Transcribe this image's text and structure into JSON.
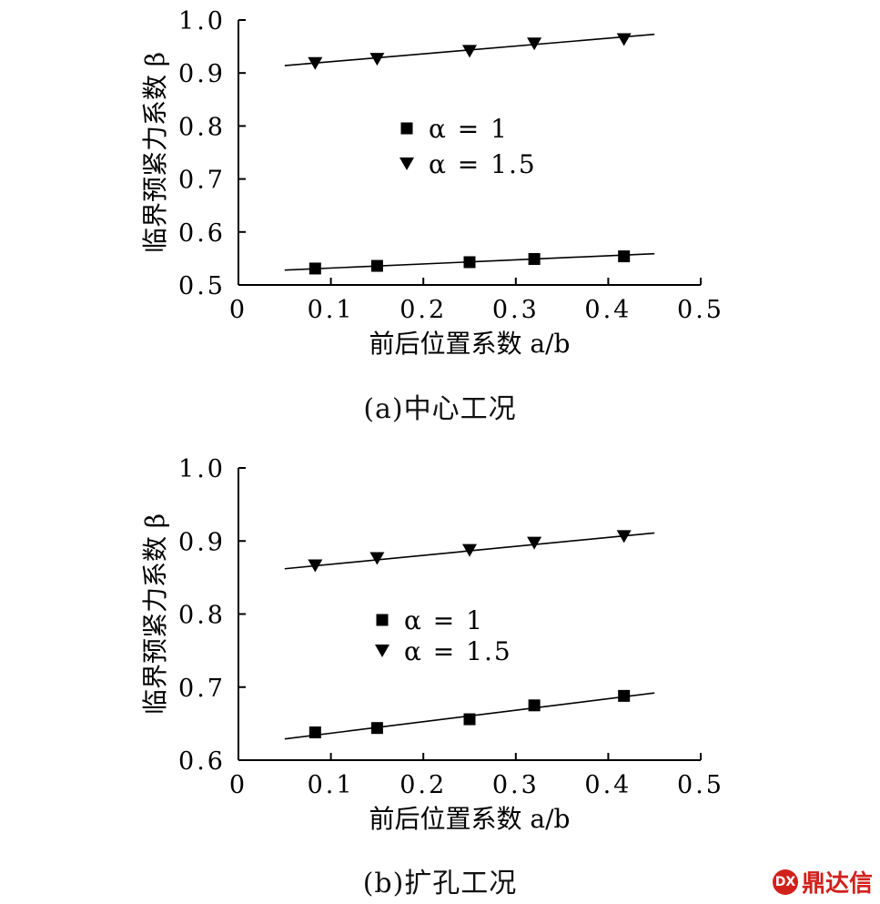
{
  "chart_data": [
    {
      "type": "scatter",
      "title": "",
      "xlabel": "前后位置系数 a/b",
      "ylabel": "临界预紧力系数 β",
      "xlim": [
        0,
        0.5
      ],
      "ylim": [
        0.5,
        1.0
      ],
      "xticks": [
        0,
        0.1,
        0.2,
        0.3,
        0.4,
        0.5
      ],
      "xtick_labels": [
        "0",
        "0.1",
        "0.2",
        "0.3",
        "0.4",
        "0.5"
      ],
      "yticks": [
        0.5,
        0.6,
        0.7,
        0.8,
        0.9,
        1.0
      ],
      "ytick_labels": [
        "0.5",
        "0.6",
        "0.7",
        "0.8",
        "0.9",
        "1.0"
      ],
      "grid": false,
      "legend_position": "center",
      "series": [
        {
          "name": "α = 1",
          "marker": "square",
          "x": [
            0.083,
            0.15,
            0.25,
            0.32,
            0.417
          ],
          "y": [
            0.531,
            0.536,
            0.543,
            0.549,
            0.554
          ],
          "fit_line": [
            [
              0.05,
              0.528
            ],
            [
              0.45,
              0.559
            ]
          ]
        },
        {
          "name": "α = 1.5",
          "marker": "triangle-down",
          "x": [
            0.083,
            0.15,
            0.25,
            0.32,
            0.417
          ],
          "y": [
            0.918,
            0.926,
            0.941,
            0.955,
            0.963
          ],
          "fit_line": [
            [
              0.05,
              0.914
            ],
            [
              0.45,
              0.973
            ]
          ]
        }
      ],
      "caption": "(a)中心工况"
    },
    {
      "type": "scatter",
      "title": "",
      "xlabel": "前后位置系数 a/b",
      "ylabel": "临界预紧力系数 β",
      "xlim": [
        0,
        0.5
      ],
      "ylim": [
        0.6,
        1.0
      ],
      "xticks": [
        0,
        0.1,
        0.2,
        0.3,
        0.4,
        0.5
      ],
      "xtick_labels": [
        "0",
        "0.1",
        "0.2",
        "0.3",
        "0.4",
        "0.5"
      ],
      "yticks": [
        0.6,
        0.7,
        0.8,
        0.9,
        1.0
      ],
      "ytick_labels": [
        "0.6",
        "0.7",
        "0.8",
        "0.9",
        "1.0"
      ],
      "grid": false,
      "legend_position": "center",
      "series": [
        {
          "name": "α = 1",
          "marker": "square",
          "x": [
            0.083,
            0.15,
            0.25,
            0.32,
            0.417
          ],
          "y": [
            0.638,
            0.644,
            0.656,
            0.675,
            0.688
          ],
          "fit_line": [
            [
              0.05,
              0.629
            ],
            [
              0.45,
              0.692
            ]
          ]
        },
        {
          "name": "α = 1.5",
          "marker": "triangle-down",
          "x": [
            0.083,
            0.15,
            0.25,
            0.32,
            0.417
          ],
          "y": [
            0.866,
            0.876,
            0.887,
            0.897,
            0.906
          ],
          "fit_line": [
            [
              0.05,
              0.862
            ],
            [
              0.45,
              0.911
            ]
          ]
        }
      ],
      "caption": "(b)扩孔工况"
    }
  ],
  "watermark": {
    "text": "鼎达信",
    "logo_text": "DX",
    "color": "#d1211b"
  }
}
